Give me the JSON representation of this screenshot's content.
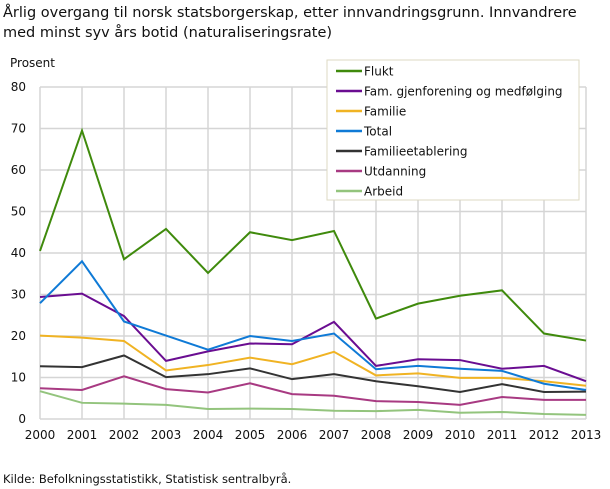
{
  "chart_data": {
    "type": "line",
    "title": "Årlig overgang til norsk statsborgerskap, etter innvandringsgrunn. Innvandrere med minst syv års botid (naturaliseringsrate)",
    "ylabel": "Prosent",
    "xlabel": "",
    "source": "Kilde: Befolkningsstatistikk, Statistisk sentralbyrå.",
    "ylim": [
      0,
      80
    ],
    "yticks": [
      0,
      10,
      20,
      30,
      40,
      50,
      60,
      70,
      80
    ],
    "grid": true,
    "legend_placement": "top-right",
    "x": [
      "2000",
      "2001",
      "2002",
      "2003",
      "2004",
      "2005",
      "2006",
      "2007",
      "2008",
      "2009",
      "2010",
      "2011",
      "2012",
      "2013"
    ],
    "series": [
      {
        "name": "Flukt",
        "color": "#3f8a0c",
        "values": [
          40.5,
          69.5,
          38.5,
          45.8,
          35.2,
          45.0,
          43.1,
          45.3,
          24.2,
          27.8,
          29.7,
          31.0,
          20.6,
          18.9
        ]
      },
      {
        "name": "Fam. gjenforening og medfølging",
        "color": "#6a0d91",
        "values": [
          29.4,
          30.2,
          24.8,
          14.0,
          16.3,
          18.2,
          18.0,
          23.4,
          12.8,
          14.4,
          14.2,
          12.1,
          12.8,
          9.1
        ]
      },
      {
        "name": "Familie",
        "color": "#f0b323",
        "values": [
          20.1,
          19.6,
          18.8,
          11.7,
          13.0,
          14.8,
          13.2,
          16.2,
          10.5,
          11.0,
          9.9,
          9.9,
          9.1,
          8.0
        ]
      },
      {
        "name": "Total",
        "color": "#0f7ad6",
        "values": [
          27.9,
          38.0,
          23.5,
          20.1,
          16.7,
          20.0,
          18.8,
          20.6,
          12.0,
          12.8,
          12.1,
          11.6,
          8.5,
          7.0
        ]
      },
      {
        "name": "Familieetablering",
        "color": "#333333",
        "values": [
          12.7,
          12.5,
          15.3,
          10.1,
          10.8,
          12.2,
          9.6,
          10.8,
          9.1,
          7.9,
          6.5,
          8.4,
          6.5,
          6.6
        ]
      },
      {
        "name": "Utdanning",
        "color": "#a83a82",
        "values": [
          7.4,
          7.0,
          10.3,
          7.2,
          6.4,
          8.6,
          6.0,
          5.6,
          4.3,
          4.1,
          3.4,
          5.3,
          4.6,
          4.6
        ]
      },
      {
        "name": "Arbeid",
        "color": "#93c47d",
        "values": [
          6.7,
          3.9,
          3.7,
          3.4,
          2.4,
          2.5,
          2.4,
          2.0,
          1.9,
          2.2,
          1.5,
          1.7,
          1.2,
          1.0
        ]
      }
    ]
  }
}
